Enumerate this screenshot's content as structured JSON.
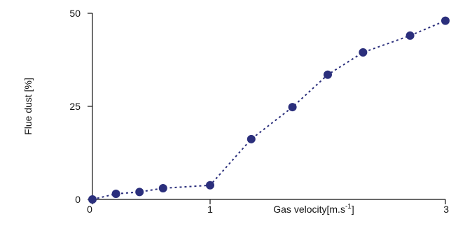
{
  "chart_data": {
    "type": "scatter",
    "title": "",
    "xlabel": "Gas velocity[m.s",
    "xlabel_superscript": "-1",
    "xlabel_suffix": "]",
    "ylabel": "Flue dust [%]",
    "xlim": [
      0,
      3
    ],
    "ylim": [
      0,
      50
    ],
    "xticks": [
      "0",
      "1",
      "3"
    ],
    "yticks": [
      "0",
      "25",
      "50"
    ],
    "grid": false,
    "legend": false,
    "line_style": "dotted",
    "color": "#2b2f7c",
    "series": [
      {
        "x": [
          0.0,
          0.2,
          0.4,
          0.6,
          1.0,
          1.35,
          1.7,
          2.0,
          2.3,
          2.7,
          3.0
        ],
        "y": [
          0.0,
          1.5,
          2.0,
          3.0,
          3.8,
          16.2,
          24.8,
          33.5,
          39.5,
          44.0,
          48.0
        ]
      }
    ]
  }
}
